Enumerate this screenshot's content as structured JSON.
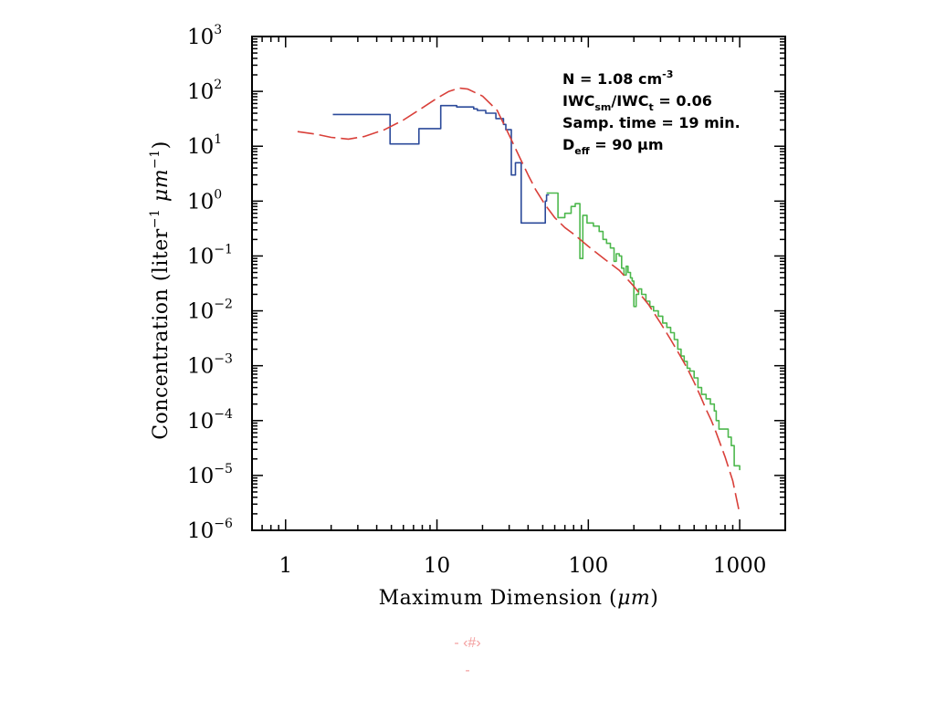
{
  "chart_data": {
    "type": "line",
    "xlabel": "Maximum Dimension (",
    "xlabel_unit": "μm",
    "xlabel_close": ")",
    "ylabel": "Concentration (liter",
    "ylabel_exp1": "−1",
    "ylabel_unit": "μm",
    "ylabel_exp2": "−1",
    "ylabel_close": ")",
    "x_scale": "log",
    "y_scale": "log",
    "xlim": [
      0.6,
      2000
    ],
    "ylim": [
      1e-06,
      1000
    ],
    "x_ticks": [
      {
        "value": 1,
        "label": "1"
      },
      {
        "value": 10,
        "label": "10"
      },
      {
        "value": 100,
        "label": "100"
      },
      {
        "value": 1000,
        "label": "1000"
      }
    ],
    "y_ticks": [
      {
        "value": 1e-06,
        "base": "10",
        "exp": "−6"
      },
      {
        "value": 1e-05,
        "base": "10",
        "exp": "−5"
      },
      {
        "value": 0.0001,
        "base": "10",
        "exp": "−4"
      },
      {
        "value": 0.001,
        "base": "10",
        "exp": "−3"
      },
      {
        "value": 0.01,
        "base": "10",
        "exp": "−2"
      },
      {
        "value": 0.1,
        "base": "10",
        "exp": "−1"
      },
      {
        "value": 1,
        "base": "10",
        "exp": "0"
      },
      {
        "value": 10,
        "base": "10",
        "exp": "1"
      },
      {
        "value": 100,
        "base": "10",
        "exp": "2"
      },
      {
        "value": 1000,
        "base": "10",
        "exp": "3"
      }
    ],
    "annotations": [
      {
        "segments": [
          {
            "t": "N = 1.08 cm"
          },
          {
            "t": "-3",
            "sup": true
          }
        ]
      },
      {
        "segments": [
          {
            "t": "IWC"
          },
          {
            "t": "sm",
            "sub": true
          },
          {
            "t": "/IWC"
          },
          {
            "t": "t",
            "sub": true
          },
          {
            "t": " = 0.06"
          }
        ]
      },
      {
        "segments": [
          {
            "t": "Samp. time = 19 min."
          }
        ]
      },
      {
        "segments": [
          {
            "t": "D"
          },
          {
            "t": "eff",
            "sub": true
          },
          {
            "t": " = 90 μm"
          }
        ]
      }
    ],
    "series": [
      {
        "color": "#2b4a9a",
        "style": "step",
        "points": [
          [
            2.05,
            38
          ],
          [
            3.9,
            38
          ],
          [
            4.9,
            11
          ],
          [
            7.1,
            11
          ],
          [
            7.6,
            21
          ],
          [
            9.0,
            21
          ],
          [
            10.6,
            55
          ],
          [
            12.5,
            55
          ],
          [
            13.5,
            52
          ],
          [
            16.0,
            52
          ],
          [
            17.5,
            48
          ],
          [
            18.5,
            45
          ],
          [
            19.8,
            45
          ],
          [
            21.0,
            40
          ],
          [
            23.5,
            40
          ],
          [
            24.5,
            32
          ],
          [
            26.0,
            32
          ],
          [
            27.5,
            25
          ],
          [
            28.5,
            20
          ],
          [
            30.5,
            20
          ],
          [
            31.0,
            3.0
          ],
          [
            32.5,
            3.0
          ],
          [
            33.0,
            5.0
          ],
          [
            35.0,
            5.0
          ],
          [
            36.0,
            0.4
          ],
          [
            42.0,
            0.4
          ],
          [
            50.0,
            0.4
          ],
          [
            52.0,
            1.0
          ],
          [
            53.0,
            1.3
          ],
          [
            55.0,
            1.3
          ]
        ]
      },
      {
        "color": "#4db84d",
        "style": "step",
        "points": [
          [
            53.0,
            1.4
          ],
          [
            62.0,
            1.4
          ],
          [
            63.0,
            0.5
          ],
          [
            68.0,
            0.5
          ],
          [
            70.0,
            0.6
          ],
          [
            75.0,
            0.6
          ],
          [
            77.0,
            0.8
          ],
          [
            80.0,
            0.8
          ],
          [
            82.0,
            0.9
          ],
          [
            86.0,
            0.9
          ],
          [
            88.0,
            0.09
          ],
          [
            91.0,
            0.09
          ],
          [
            92.0,
            0.55
          ],
          [
            96.0,
            0.55
          ],
          [
            98.0,
            0.4
          ],
          [
            105.0,
            0.4
          ],
          [
            108.0,
            0.35
          ],
          [
            115.0,
            0.35
          ],
          [
            118.0,
            0.28
          ],
          [
            125.0,
            0.2
          ],
          [
            132.0,
            0.17
          ],
          [
            140.0,
            0.14
          ],
          [
            148.0,
            0.08
          ],
          [
            153.0,
            0.11
          ],
          [
            160.0,
            0.1
          ],
          [
            166.0,
            0.06
          ],
          [
            172.0,
            0.045
          ],
          [
            178.0,
            0.065
          ],
          [
            183.0,
            0.05
          ],
          [
            190.0,
            0.04
          ],
          [
            195.0,
            0.035
          ],
          [
            200.0,
            0.012
          ],
          [
            207.0,
            0.02
          ],
          [
            215.0,
            0.025
          ],
          [
            225.0,
            0.02
          ],
          [
            240.0,
            0.015
          ],
          [
            255.0,
            0.012
          ],
          [
            270.0,
            0.01
          ],
          [
            290.0,
            0.008
          ],
          [
            310.0,
            0.006
          ],
          [
            330.0,
            0.005
          ],
          [
            350.0,
            0.004
          ],
          [
            370.0,
            0.003
          ],
          [
            390.0,
            0.002
          ],
          [
            410.0,
            0.0015
          ],
          [
            430.0,
            0.0012
          ],
          [
            450.0,
            0.0009
          ],
          [
            470.0,
            0.0008
          ],
          [
            500.0,
            0.0006
          ],
          [
            530.0,
            0.0004
          ],
          [
            560.0,
            0.0003
          ],
          [
            600.0,
            0.00025
          ],
          [
            640.0,
            0.0002
          ],
          [
            680.0,
            0.00015
          ],
          [
            700.0,
            0.0001
          ],
          [
            730.0,
            7e-05
          ],
          [
            800.0,
            7e-05
          ],
          [
            840.0,
            5e-05
          ],
          [
            880.0,
            3.5e-05
          ],
          [
            920.0,
            1.5e-05
          ],
          [
            1000.0,
            1.25e-05
          ]
        ]
      },
      {
        "color": "#d9403a",
        "style": "dashed",
        "points": [
          [
            1.2,
            18.5
          ],
          [
            1.6,
            16.5
          ],
          [
            2.0,
            14.5
          ],
          [
            2.6,
            13.5
          ],
          [
            3.3,
            15
          ],
          [
            4.5,
            20
          ],
          [
            6.0,
            30
          ],
          [
            8.0,
            50
          ],
          [
            10.0,
            75
          ],
          [
            12.0,
            100
          ],
          [
            14.0,
            115
          ],
          [
            16.0,
            110
          ],
          [
            20.0,
            82
          ],
          [
            25.0,
            45
          ],
          [
            30.0,
            16
          ],
          [
            35.0,
            6.5
          ],
          [
            40.0,
            3.0
          ],
          [
            45.0,
            1.6
          ],
          [
            52.0,
            0.85
          ],
          [
            60.0,
            0.5
          ],
          [
            70.0,
            0.33
          ],
          [
            80.0,
            0.25
          ],
          [
            100.0,
            0.15
          ],
          [
            130.0,
            0.085
          ],
          [
            160.0,
            0.055
          ],
          [
            200.0,
            0.028
          ],
          [
            250.0,
            0.013
          ],
          [
            300.0,
            0.006
          ],
          [
            350.0,
            0.003
          ],
          [
            400.0,
            0.0016
          ],
          [
            450.0,
            0.0009
          ],
          [
            500.0,
            0.0005
          ],
          [
            550.0,
            0.00028
          ],
          [
            600.0,
            0.00016
          ],
          [
            650.0,
            0.0001
          ],
          [
            700.0,
            6e-05
          ],
          [
            800.0,
            2.2e-05
          ],
          [
            900.0,
            8e-06
          ],
          [
            1000.0,
            2e-06
          ]
        ]
      }
    ]
  },
  "footer": {
    "line1": "- ‹#›",
    "line2": "-"
  }
}
